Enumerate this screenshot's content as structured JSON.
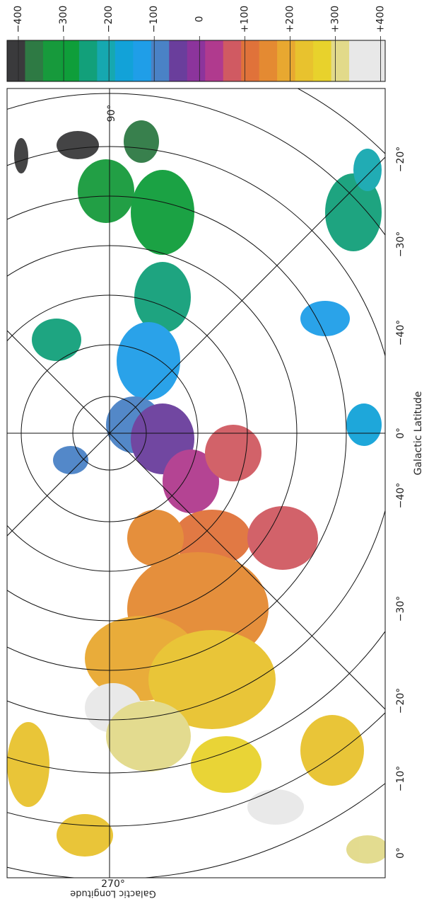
{
  "chart_data": {
    "type": "map",
    "colorbar": {
      "lim": [
        -425,
        410
      ],
      "ticks": [
        {
          "value": -400,
          "label": "−400"
        },
        {
          "value": -300,
          "label": "−300"
        },
        {
          "value": -200,
          "label": "−200"
        },
        {
          "value": -100,
          "label": "−100"
        },
        0,
        {
          "value": 100,
          "label": "+100"
        },
        {
          "value": 200,
          "label": "+200"
        },
        {
          "value": 300,
          "label": "+300"
        },
        {
          "value": 400,
          "label": "+400"
        }
      ],
      "colors": [
        "#3a3a3c",
        "#2e7a44",
        "#179a3c",
        "#0f9e3a",
        "#12a07a",
        "#16a8b0",
        "#12a2d8",
        "#1f9ee8",
        "#4a82c6",
        "#6a3e9c",
        "#8c349c",
        "#b03a8e",
        "#d05a62",
        "#e0723a",
        "#e48a32",
        "#e8a830",
        "#e8c22e",
        "#e8d22c",
        "#e2da8a",
        "#e8e8e8",
        "#e8e8e8"
      ]
    },
    "xlabel": "Galactic Latitude",
    "ylabel": "Galactic Longitude",
    "latitude_labels": [
      "−20°",
      "−30°",
      "−40°",
      "0°",
      "−40°",
      "−30°",
      "−20°",
      "−10°",
      "0°"
    ],
    "longitude_labels": [
      "90°",
      "270°"
    ]
  }
}
